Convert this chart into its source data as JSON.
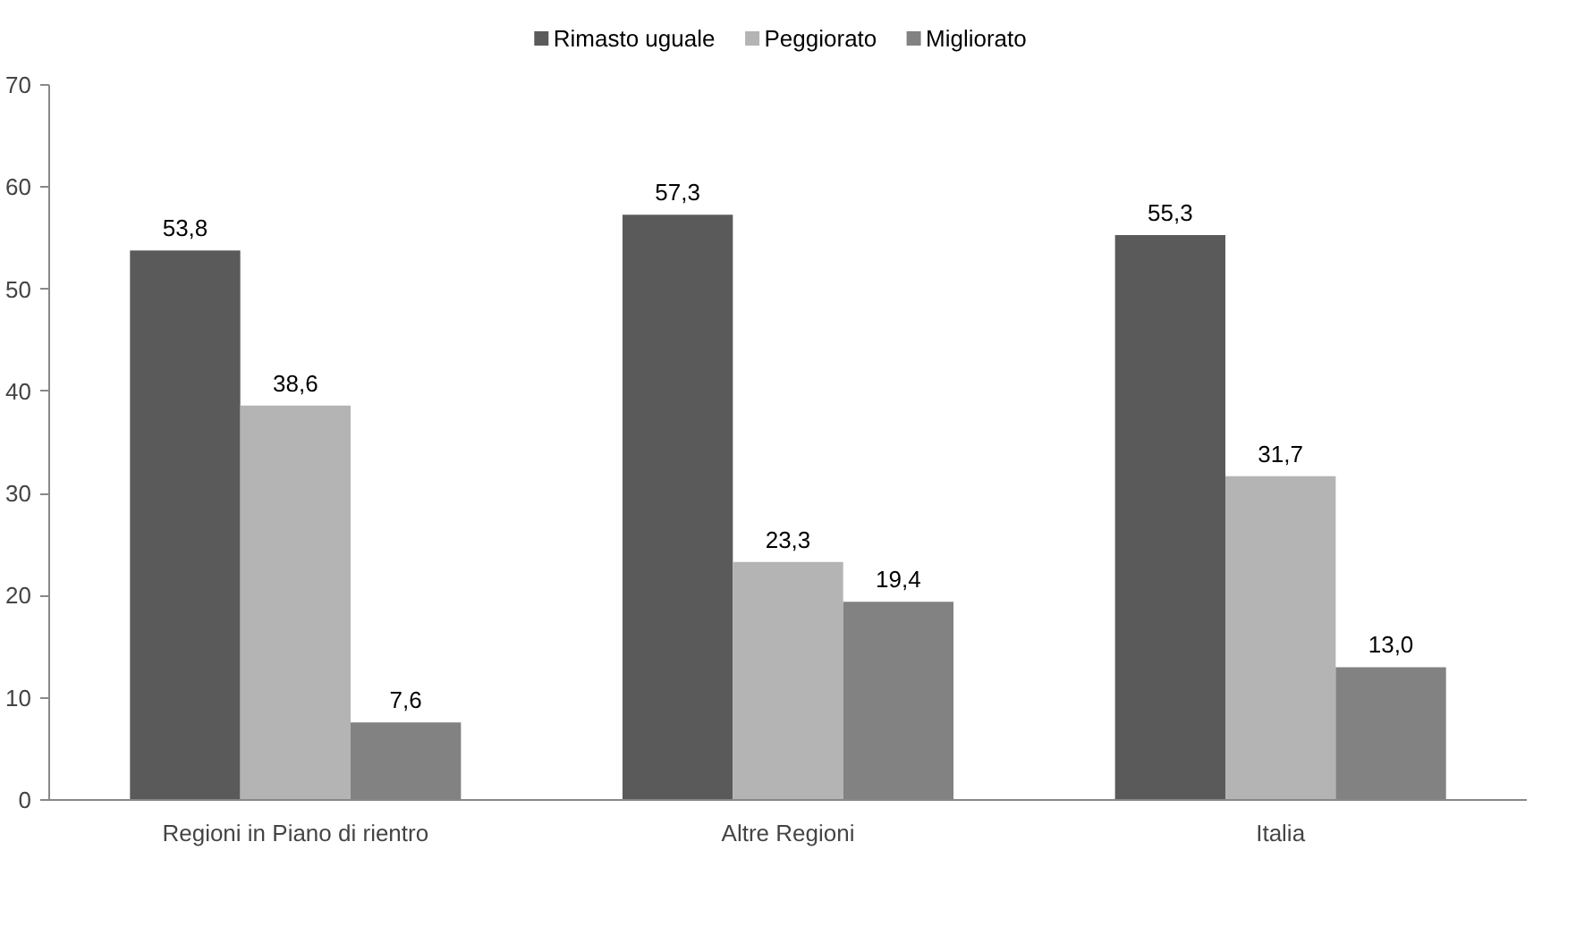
{
  "chart_data": {
    "type": "bar",
    "categories": [
      "Regioni in Piano di rientro",
      "Altre Regioni",
      "Italia"
    ],
    "series": [
      {
        "name": "Rimasto uguale",
        "color": "#5a5a5a",
        "values": [
          53.8,
          57.3,
          55.3
        ],
        "value_labels": [
          "53,8",
          "57,3",
          "55,3"
        ]
      },
      {
        "name": "Peggiorato",
        "color": "#b4b4b4",
        "values": [
          38.6,
          23.3,
          31.7
        ],
        "value_labels": [
          "38,6",
          "23,3",
          "31,7"
        ]
      },
      {
        "name": "Migliorato",
        "color": "#828282",
        "values": [
          7.6,
          19.4,
          13.0
        ],
        "value_labels": [
          "7,6",
          "19,4",
          "13,0"
        ]
      }
    ],
    "ylim": [
      0,
      70
    ],
    "yticks": [
      0,
      10,
      20,
      30,
      40,
      50,
      60,
      70
    ],
    "grid": false,
    "legend": "top"
  }
}
